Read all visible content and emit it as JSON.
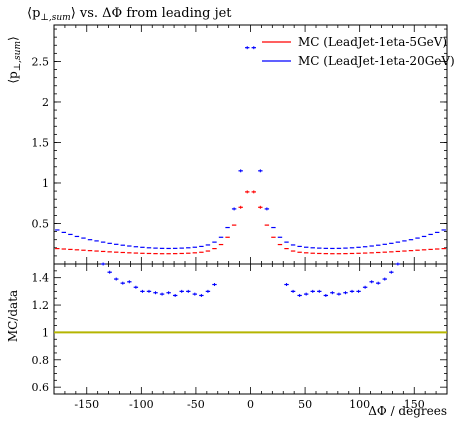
{
  "chart_data": [
    {
      "type": "scatter",
      "title": "⟨p⊥,sum⟩ vs. ΔΦ from leading jet",
      "title_parts": {
        "open": "⟨p",
        "sub": "⊥,sum",
        "close": "⟩ vs. ΔΦ from leading jet"
      },
      "ylabel": "⟨p⊥,sum⟩",
      "ylabel_parts": {
        "open": "⟨p",
        "sub": "⊥,sum",
        "close": "⟩"
      },
      "xlim": [
        -180,
        180
      ],
      "ylim": [
        0,
        2.95
      ],
      "yticks": [
        "0.5",
        "1",
        "1.5",
        "2",
        "2.5"
      ],
      "ytick_values": [
        0.5,
        1,
        1.5,
        2,
        2.5
      ],
      "grid": false,
      "legend_position": "top-right",
      "x_bins": [
        -177,
        -171,
        -165,
        -159,
        -153,
        -147,
        -141,
        -135,
        -129,
        -123,
        -117,
        -111,
        -105,
        -99,
        -93,
        -87,
        -81,
        -75,
        -69,
        -63,
        -57,
        -51,
        -45,
        -39,
        -33,
        -27,
        -21,
        -15,
        -9,
        -3,
        3,
        9,
        15,
        21,
        27,
        33,
        39,
        45,
        51,
        57,
        63,
        69,
        75,
        81,
        87,
        93,
        99,
        105,
        111,
        117,
        123,
        129,
        135,
        141,
        147,
        153,
        159,
        165,
        171,
        177
      ],
      "series": [
        {
          "name": "MC (LeadJet-1eta-5GeV)",
          "color": "#ff0000",
          "values": [
            0.19,
            0.185,
            0.18,
            0.175,
            0.17,
            0.165,
            0.16,
            0.155,
            0.15,
            0.146,
            0.142,
            0.138,
            0.135,
            0.132,
            0.13,
            0.128,
            0.127,
            0.127,
            0.128,
            0.13,
            0.133,
            0.138,
            0.145,
            0.16,
            0.19,
            0.24,
            0.33,
            0.48,
            0.7,
            0.89,
            0.89,
            0.7,
            0.48,
            0.33,
            0.24,
            0.19,
            0.16,
            0.145,
            0.138,
            0.133,
            0.13,
            0.128,
            0.127,
            0.127,
            0.128,
            0.13,
            0.132,
            0.135,
            0.138,
            0.142,
            0.146,
            0.15,
            0.155,
            0.16,
            0.165,
            0.17,
            0.175,
            0.18,
            0.185,
            0.19
          ]
        },
        {
          "name": "MC (LeadJet-1eta-20GeV)",
          "color": "#0000ff",
          "values": [
            0.42,
            0.39,
            0.365,
            0.34,
            0.32,
            0.3,
            0.285,
            0.27,
            0.255,
            0.243,
            0.232,
            0.222,
            0.213,
            0.206,
            0.2,
            0.196,
            0.193,
            0.192,
            0.193,
            0.196,
            0.2,
            0.207,
            0.217,
            0.235,
            0.27,
            0.33,
            0.45,
            0.68,
            1.15,
            2.67,
            2.67,
            1.15,
            0.68,
            0.45,
            0.33,
            0.27,
            0.235,
            0.217,
            0.207,
            0.2,
            0.196,
            0.193,
            0.192,
            0.193,
            0.196,
            0.2,
            0.206,
            0.213,
            0.222,
            0.232,
            0.243,
            0.255,
            0.27,
            0.285,
            0.3,
            0.32,
            0.34,
            0.365,
            0.39,
            0.42
          ]
        }
      ]
    },
    {
      "type": "scatter",
      "ylabel": "MC/data",
      "xlabel": "ΔΦ / degrees",
      "xlim": [
        -180,
        180
      ],
      "ylim": [
        0.55,
        1.5
      ],
      "yticks": [
        "0.6",
        "0.8",
        "1",
        "1.2",
        "1.4"
      ],
      "ytick_values": [
        0.6,
        0.8,
        1.0,
        1.2,
        1.4
      ],
      "xticks": [
        "-150",
        "-100",
        "-50",
        "0",
        "50",
        "100",
        "150"
      ],
      "xtick_values": [
        -150,
        -100,
        -50,
        0,
        50,
        100,
        150
      ],
      "grid": false,
      "reference_line": {
        "y": 1.0,
        "color": "#b5b500"
      },
      "series": [
        {
          "name": "MC (LeadJet-1eta-20GeV)",
          "color": "#0000ff",
          "x": [
            -135,
            -129,
            -123,
            -117,
            -111,
            -105,
            -99,
            -93,
            -87,
            -81,
            -75,
            -69,
            -63,
            -57,
            -51,
            -45,
            -39,
            -33,
            33,
            39,
            45,
            51,
            57,
            63,
            69,
            75,
            81,
            87,
            93,
            99,
            105,
            111,
            117,
            123,
            129,
            135
          ],
          "values": [
            1.5,
            1.44,
            1.39,
            1.36,
            1.37,
            1.33,
            1.3,
            1.3,
            1.29,
            1.28,
            1.29,
            1.27,
            1.3,
            1.3,
            1.28,
            1.27,
            1.3,
            1.35,
            1.35,
            1.3,
            1.27,
            1.28,
            1.3,
            1.3,
            1.27,
            1.29,
            1.28,
            1.29,
            1.3,
            1.3,
            1.33,
            1.37,
            1.36,
            1.39,
            1.44,
            1.5
          ]
        }
      ]
    }
  ]
}
